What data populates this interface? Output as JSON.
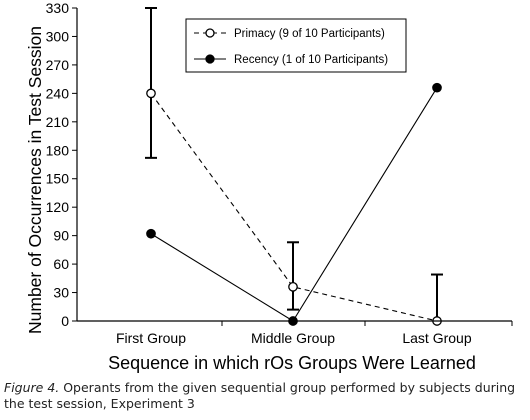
{
  "chart_data": {
    "type": "line",
    "categories": [
      "First Group",
      "Middle Group",
      "Last Group"
    ],
    "xlabel": "Sequence in which rOs Groups Were Learned",
    "ylabel": "Number of Occurrences in Test Session",
    "ylim": [
      0,
      330
    ],
    "yticks": [
      0,
      30,
      60,
      90,
      120,
      150,
      180,
      210,
      240,
      270,
      300,
      330
    ],
    "grid": false,
    "legend_position": "top-right",
    "series": [
      {
        "name": "Primacy (9 of 10 Participants)",
        "values": [
          240,
          36,
          0
        ],
        "error_low": [
          172,
          12,
          0
        ],
        "error_high": [
          330,
          83,
          49
        ],
        "line_style": "dashed",
        "marker": "open-circle"
      },
      {
        "name": "Recency (1 of 10 Participants)",
        "values": [
          92,
          0,
          246
        ],
        "line_style": "solid",
        "marker": "filled-circle"
      }
    ]
  },
  "caption": {
    "label": "Figure 4.",
    "text": " Operants from the given sequential group performed by subjects during the test session, Experiment 3"
  }
}
